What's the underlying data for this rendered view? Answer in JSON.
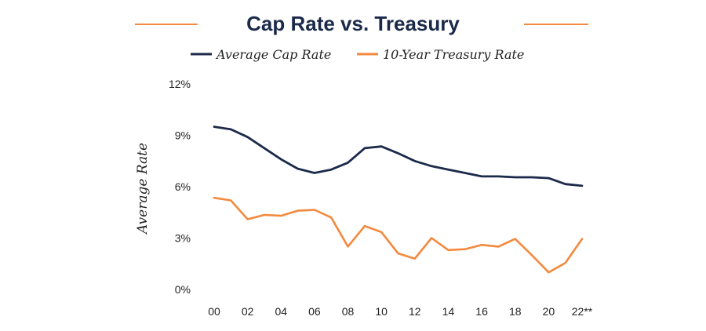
{
  "colors": {
    "navy": "#1b2a4a",
    "orange": "#f4893d"
  },
  "chart_data": {
    "type": "line",
    "title": "Cap Rate vs. Treasury",
    "ylabel": "Average Rate",
    "xlabel": "",
    "x": [
      2000,
      2001,
      2002,
      2003,
      2004,
      2005,
      2006,
      2007,
      2008,
      2009,
      2010,
      2011,
      2012,
      2013,
      2014,
      2015,
      2016,
      2017,
      2018,
      2019,
      2020,
      2021,
      2022
    ],
    "x_tick_labels": [
      "00",
      "02",
      "04",
      "06",
      "08",
      "10",
      "12",
      "14",
      "16",
      "18",
      "20",
      "22**"
    ],
    "x_tick_positions": [
      2000,
      2002,
      2004,
      2006,
      2008,
      2010,
      2012,
      2014,
      2016,
      2018,
      2020,
      2022
    ],
    "ylim": [
      0,
      12
    ],
    "y_ticks": [
      0,
      3,
      6,
      9,
      12
    ],
    "y_tick_labels": [
      "0%",
      "3%",
      "6%",
      "9%",
      "12%"
    ],
    "grid": false,
    "legend_position": "top-center",
    "series": [
      {
        "name": "Average Cap Rate",
        "color": "#1b2a4a",
        "values": [
          9.5,
          9.35,
          8.9,
          8.25,
          7.6,
          7.05,
          6.8,
          7.0,
          7.4,
          8.25,
          8.35,
          7.95,
          7.5,
          7.2,
          7.0,
          6.8,
          6.6,
          6.6,
          6.55,
          6.55,
          6.5,
          6.15,
          6.05
        ]
      },
      {
        "name": "10-Year Treasury Rate",
        "color": "#f4893d",
        "values": [
          5.35,
          5.2,
          4.1,
          4.35,
          4.3,
          4.6,
          4.65,
          4.2,
          2.5,
          3.7,
          3.35,
          2.1,
          1.8,
          3.0,
          2.3,
          2.35,
          2.6,
          2.5,
          2.95,
          2.0,
          1.0,
          1.55,
          2.95
        ]
      }
    ]
  }
}
